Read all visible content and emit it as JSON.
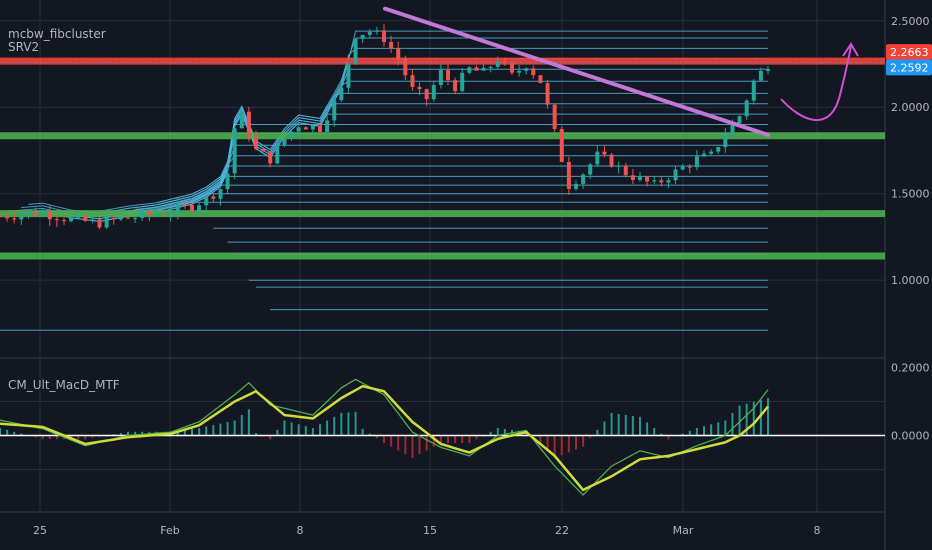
{
  "pane_labels": {
    "main_title": "mcbw_fibcluster",
    "main_subtitle": "SRV2",
    "indicator_title": "CM_Ult_MacD_MTF"
  },
  "colors": {
    "background": "#131722",
    "grid": "#2a2e39",
    "axis_text": "#b2b5be",
    "up_candle": "#26a69a",
    "down_candle": "#ef5350",
    "cluster_line": "#4fb3d9",
    "red_level": "#f44336",
    "green_level": "#4caf50",
    "trendline": "#c278d6",
    "arrow": "#d44fd4",
    "price_badge": "#2196f3",
    "macd_fast": "#4caf50",
    "macd_signal": "#cddc39",
    "macd_cross_down": "#f23645",
    "zero_line": "#ffffff",
    "hist_up": "#26a69a",
    "hist_down": "#b22833",
    "hist_blue": "#2962ff"
  },
  "chart_data": [
    {
      "type": "candlestick",
      "title": "",
      "x_ticks": [
        "25",
        "Feb",
        "8",
        "15",
        "22",
        "Mar",
        "8"
      ],
      "y_ticks": [
        "2.5000",
        "2.0000",
        "1.5000",
        "1.0000"
      ],
      "y_tick_values": [
        2.5,
        2.0,
        1.5,
        1.0
      ],
      "ylim": [
        0.55,
        2.62
      ],
      "price_badges": [
        {
          "text": "2.2663",
          "value": 2.2663,
          "color": "#f44336"
        },
        {
          "text": "2.2592",
          "value": 2.2592,
          "color": "#2196f3"
        }
      ],
      "horizontal_levels": [
        {
          "value": 2.2663,
          "color": "#f44336",
          "role": "resistance"
        },
        {
          "value": 1.835,
          "color": "#4caf50",
          "role": "support"
        },
        {
          "value": 1.385,
          "color": "#4caf50",
          "role": "support"
        },
        {
          "value": 1.14,
          "color": "#4caf50",
          "role": "support"
        }
      ],
      "trendline": {
        "from_value": 2.57,
        "to_value": 1.84,
        "color": "#c278d6"
      },
      "price_path": [
        [
          0,
          1.37
        ],
        [
          6,
          1.39
        ],
        [
          10,
          1.35
        ],
        [
          14,
          1.33
        ],
        [
          18,
          1.36
        ],
        [
          22,
          1.38
        ],
        [
          27,
          1.43
        ],
        [
          29,
          1.47
        ],
        [
          31,
          1.53
        ],
        [
          32,
          1.62
        ],
        [
          33,
          1.88
        ],
        [
          34,
          1.95
        ],
        [
          36,
          1.75
        ],
        [
          38,
          1.7
        ],
        [
          40,
          1.82
        ],
        [
          42,
          1.9
        ],
        [
          45,
          1.88
        ],
        [
          48,
          2.1
        ],
        [
          50,
          2.42
        ],
        [
          52,
          2.44
        ],
        [
          54,
          2.4
        ],
        [
          56,
          2.28
        ],
        [
          58,
          2.1
        ],
        [
          60,
          2.05
        ],
        [
          62,
          2.2
        ],
        [
          64,
          2.12
        ],
        [
          66,
          2.22
        ],
        [
          68,
          2.2
        ],
        [
          70,
          2.28
        ],
        [
          72,
          2.18
        ],
        [
          74,
          2.25
        ],
        [
          76,
          2.15
        ],
        [
          78,
          1.85
        ],
        [
          80,
          1.55
        ],
        [
          82,
          1.62
        ],
        [
          84,
          1.72
        ],
        [
          86,
          1.68
        ],
        [
          88,
          1.62
        ],
        [
          90,
          1.58
        ],
        [
          92,
          1.55
        ],
        [
          94,
          1.6
        ],
        [
          96,
          1.65
        ],
        [
          98,
          1.7
        ],
        [
          100,
          1.72
        ],
        [
          102,
          1.85
        ],
        [
          104,
          1.95
        ],
        [
          106,
          2.15
        ],
        [
          108,
          2.25
        ]
      ],
      "cluster_level_values": [
        2.44,
        2.4,
        2.34,
        2.28,
        2.22,
        2.15,
        2.08,
        2.02,
        1.96,
        1.9,
        1.85,
        1.78,
        1.72,
        1.66,
        1.6,
        1.55,
        1.5,
        1.45,
        1.4,
        1.3,
        1.22,
        1.15,
        1.0,
        0.96,
        0.83,
        0.71
      ]
    },
    {
      "type": "macd",
      "title": "",
      "y_ticks": [
        "0.2000",
        "0.0000"
      ],
      "y_tick_values": [
        0.2,
        0.0
      ],
      "ylim": [
        -0.225,
        0.225
      ],
      "signal_line": [
        [
          0,
          0.035
        ],
        [
          6,
          0.025
        ],
        [
          12,
          -0.025
        ],
        [
          18,
          -0.005
        ],
        [
          24,
          0.005
        ],
        [
          28,
          0.03
        ],
        [
          33,
          0.1
        ],
        [
          36,
          0.13
        ],
        [
          40,
          0.06
        ],
        [
          44,
          0.05
        ],
        [
          48,
          0.11
        ],
        [
          51,
          0.145
        ],
        [
          54,
          0.13
        ],
        [
          58,
          0.04
        ],
        [
          62,
          -0.025
        ],
        [
          66,
          -0.05
        ],
        [
          70,
          -0.01
        ],
        [
          74,
          0.01
        ],
        [
          78,
          -0.06
        ],
        [
          82,
          -0.16
        ],
        [
          86,
          -0.12
        ],
        [
          90,
          -0.07
        ],
        [
          94,
          -0.06
        ],
        [
          98,
          -0.04
        ],
        [
          102,
          -0.02
        ],
        [
          104,
          0.0
        ],
        [
          106,
          0.035
        ],
        [
          108,
          0.085
        ]
      ],
      "fast_line": [
        [
          0,
          0.045
        ],
        [
          6,
          0.02
        ],
        [
          12,
          -0.03
        ],
        [
          18,
          0.0
        ],
        [
          24,
          0.01
        ],
        [
          28,
          0.04
        ],
        [
          33,
          0.12
        ],
        [
          35,
          0.155
        ],
        [
          38,
          0.09
        ],
        [
          44,
          0.06
        ],
        [
          48,
          0.14
        ],
        [
          50,
          0.165
        ],
        [
          54,
          0.12
        ],
        [
          58,
          0.01
        ],
        [
          62,
          -0.035
        ],
        [
          66,
          -0.06
        ],
        [
          70,
          0.0
        ],
        [
          74,
          0.015
        ],
        [
          78,
          -0.09
        ],
        [
          82,
          -0.175
        ],
        [
          86,
          -0.09
        ],
        [
          90,
          -0.045
        ],
        [
          94,
          -0.065
        ],
        [
          98,
          -0.03
        ],
        [
          102,
          0.0
        ],
        [
          104,
          0.04
        ],
        [
          106,
          0.08
        ],
        [
          108,
          0.135
        ]
      ]
    }
  ]
}
